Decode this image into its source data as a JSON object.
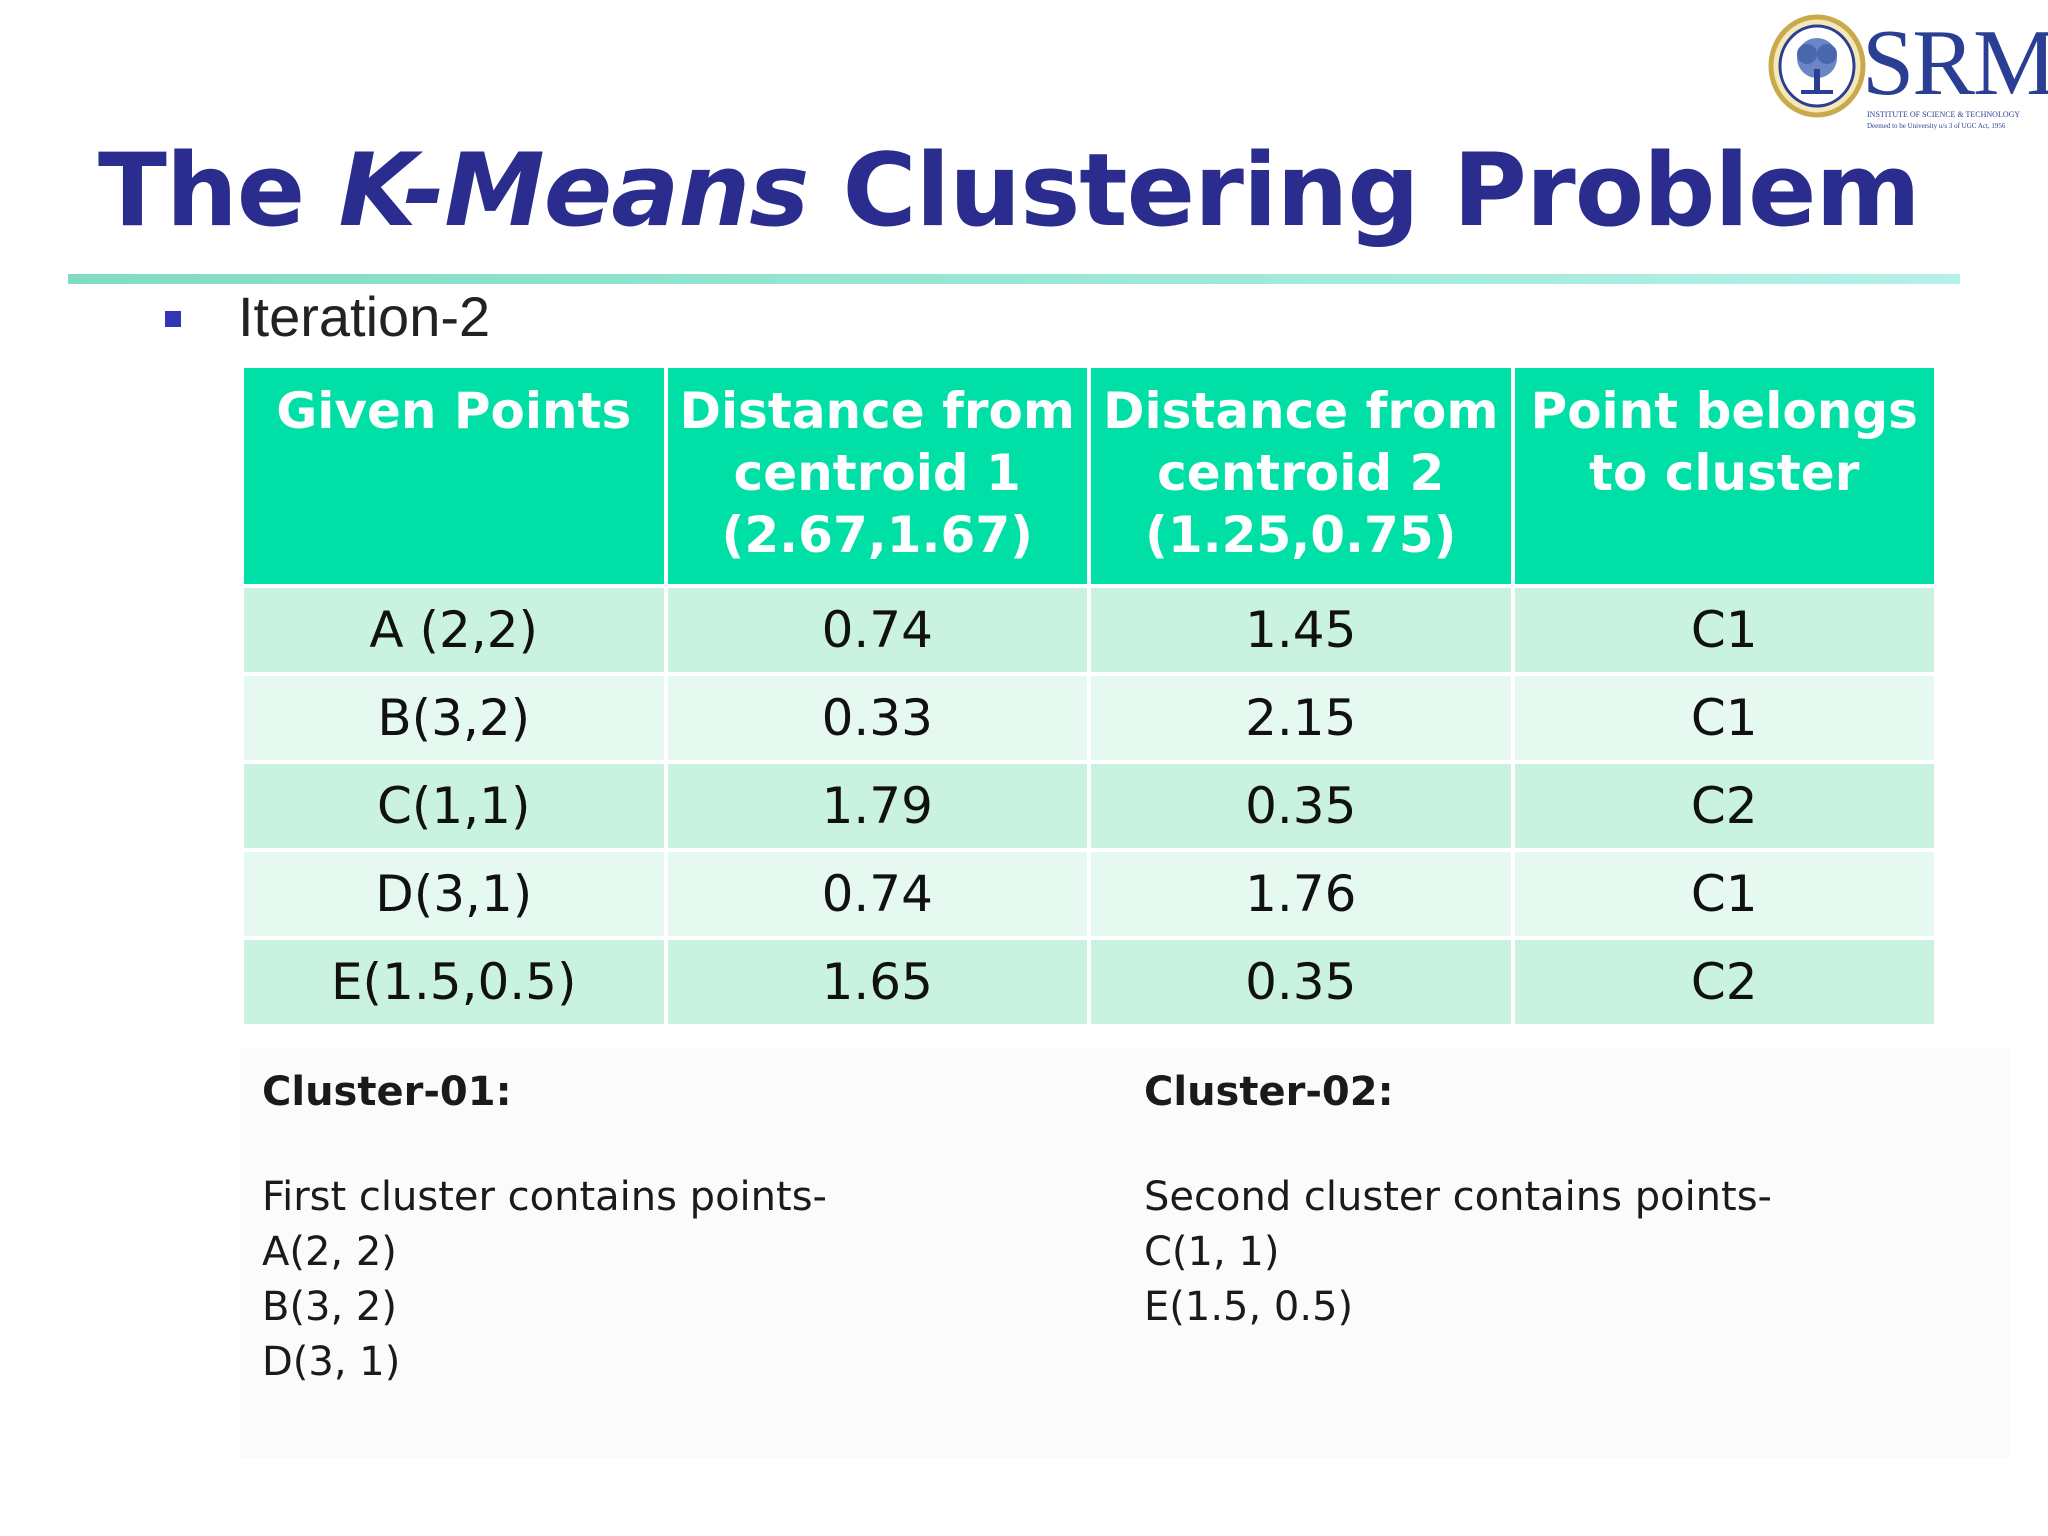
{
  "logo": {
    "name": "SRM",
    "subtitle": "INSTITUTE OF SCIENCE & TECHNOLOGY",
    "subtitle2": "Deemed to be University u/s 3 of UGC Act, 1956"
  },
  "slide": {
    "title_prefix": "The",
    "title_italic": "K-Means",
    "title_suffix": "Clustering Problem",
    "bullet": "Iteration-2"
  },
  "table": {
    "headers": [
      "Given Points",
      "Distance from centroid 1 (2.67,1.67)",
      "Distance from centroid 2 (1.25,0.75)",
      "Point belongs to cluster"
    ],
    "rows": [
      [
        "A (2,2)",
        "0.74",
        "1.45",
        "C1"
      ],
      [
        "B(3,2)",
        "0.33",
        "2.15",
        "C1"
      ],
      [
        "C(1,1)",
        "1.79",
        "0.35",
        "C2"
      ],
      [
        "D(3,1)",
        "0.74",
        "1.76",
        "C1"
      ],
      [
        "E(1.5,0.5)",
        "1.65",
        "0.35",
        "C2"
      ]
    ]
  },
  "clusters": [
    {
      "heading": "Cluster-01:",
      "intro": "First cluster contains points-",
      "points": [
        "A(2, 2)",
        "B(3, 2)",
        "D(3, 1)"
      ]
    },
    {
      "heading": "Cluster-02:",
      "intro": "Second cluster contains points-",
      "points": [
        "C(1, 1)",
        "E(1.5, 0.5)"
      ]
    }
  ],
  "colors": {
    "title": "#2b2d8e",
    "header_bg": "#00dfa6",
    "row_odd": "#c9f3e0",
    "row_even": "#e6f9f0",
    "bullet": "#3535b8"
  }
}
